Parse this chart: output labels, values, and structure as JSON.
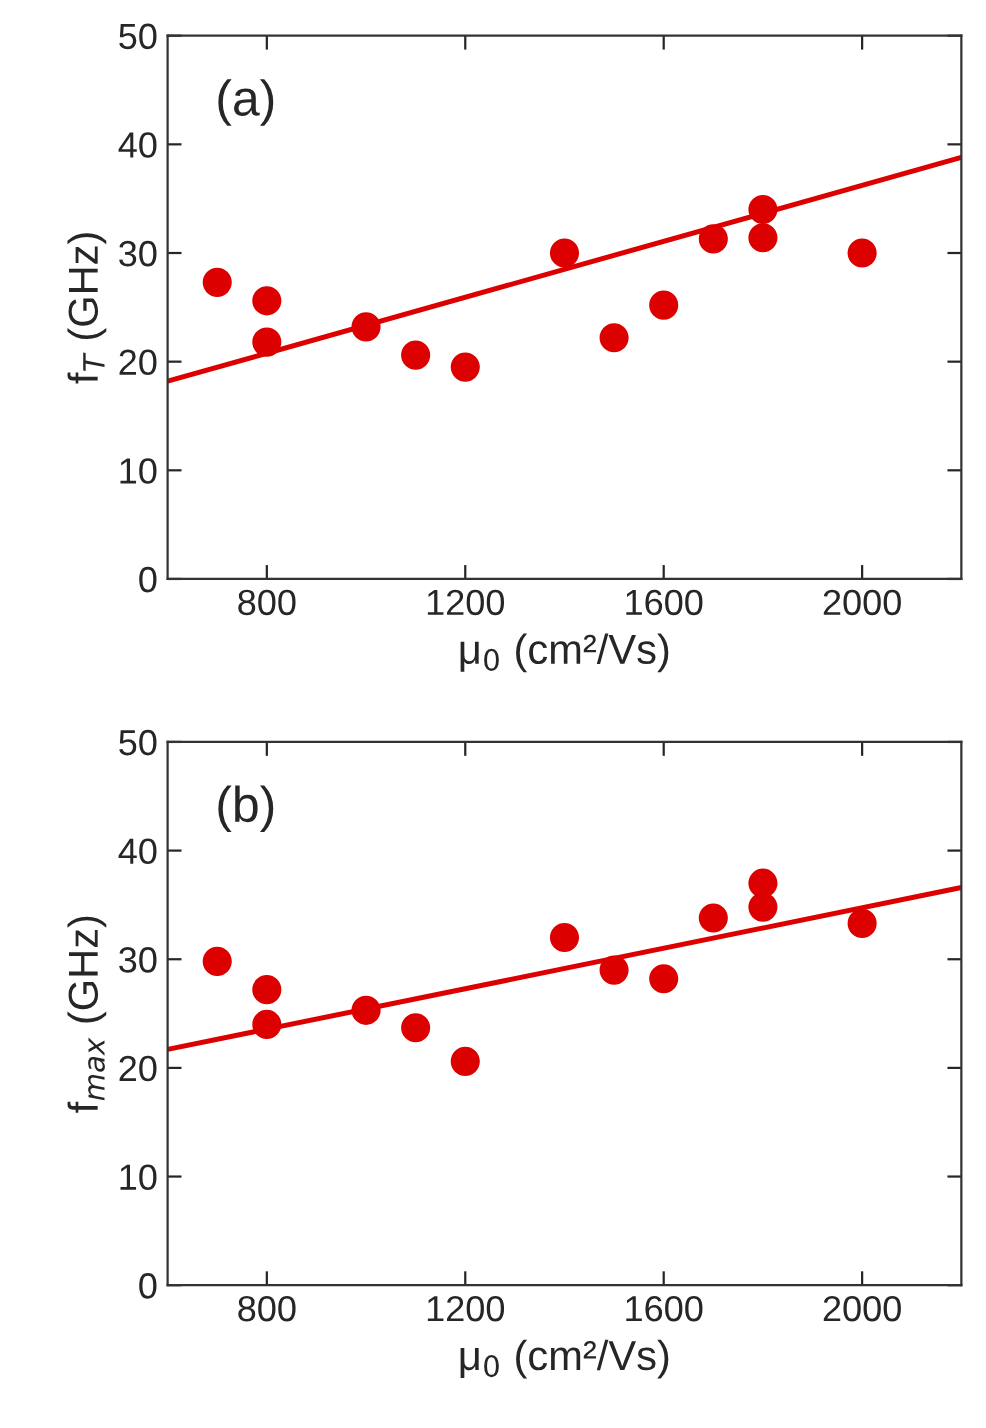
{
  "chart_data": [
    {
      "type": "scatter",
      "xlabel": "μ$_{0}$ (cm²/Vs)",
      "ylabel": "f$_{T}$ (GHz)",
      "annotations": [
        "(a)"
      ],
      "xlim": [
        600,
        2200
      ],
      "ylim": [
        0,
        50
      ],
      "xticks": [
        800,
        1200,
        1600,
        2000
      ],
      "yticks": [
        0,
        10,
        20,
        30,
        40,
        50
      ],
      "grid": false,
      "series": [
        {
          "marker": "circle",
          "color": "#dd0000",
          "x": [
            700,
            800,
            800,
            1000,
            1100,
            1200,
            1400,
            1500,
            1600,
            1700,
            1800,
            1800,
            2000
          ],
          "values": [
            27.3,
            25.6,
            21.8,
            23.2,
            20.6,
            19.5,
            30,
            22.2,
            25.2,
            31.3,
            34,
            31.4,
            30
          ]
        },
        {
          "type": "line",
          "marker": "none",
          "color": "#dd0000",
          "x": [
            600,
            2200
          ],
          "values": [
            18.2,
            38.8
          ]
        }
      ]
    },
    {
      "type": "scatter",
      "xlabel": "μ$_{0}$ (cm²/Vs)",
      "ylabel": "f$_{max}$ (GHz)",
      "annotations": [
        "(b)"
      ],
      "xlim": [
        600,
        2200
      ],
      "ylim": [
        0,
        50
      ],
      "xticks": [
        800,
        1200,
        1600,
        2000
      ],
      "yticks": [
        0,
        10,
        20,
        30,
        40,
        50
      ],
      "grid": false,
      "series": [
        {
          "marker": "circle",
          "color": "#dd0000",
          "x": [
            700,
            800,
            800,
            1000,
            1100,
            1200,
            1400,
            1500,
            1600,
            1700,
            1800,
            1800,
            2000
          ],
          "values": [
            29.8,
            27.2,
            24,
            25.3,
            23.7,
            20.6,
            32,
            29,
            28.2,
            33.8,
            37,
            34.8,
            33.3
          ]
        },
        {
          "type": "line",
          "marker": "none",
          "color": "#dd0000",
          "x": [
            600,
            2200
          ],
          "values": [
            21.7,
            36.6
          ]
        }
      ]
    }
  ]
}
